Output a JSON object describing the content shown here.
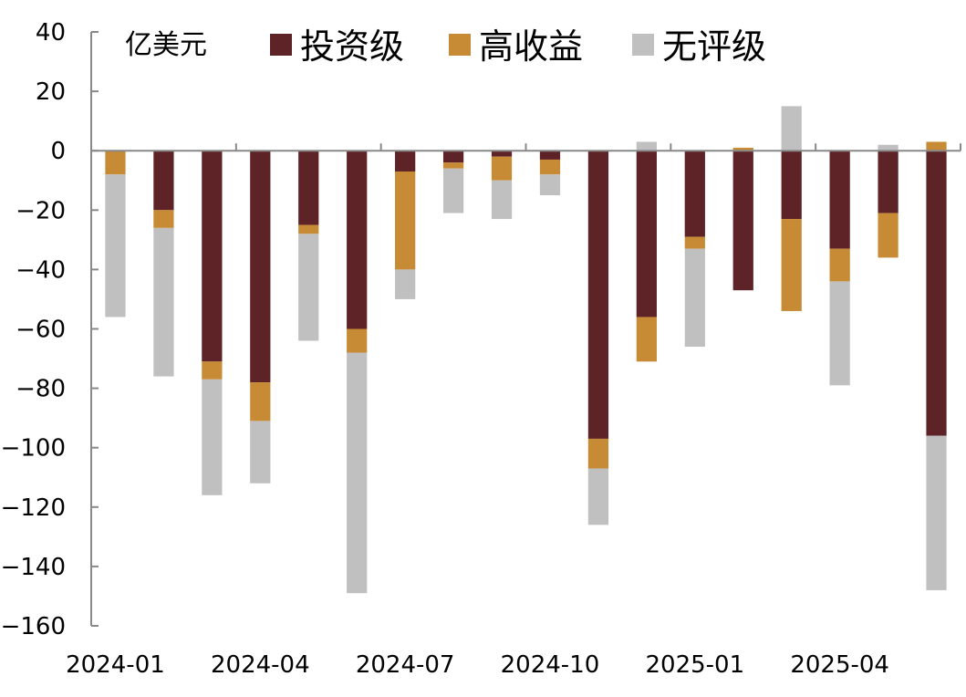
{
  "chart_data": {
    "type": "bar",
    "stacked": true,
    "unit_label": "亿美元",
    "categories": [
      "2024-01",
      "2024-02",
      "2024-03",
      "2024-04",
      "2024-05",
      "2024-06",
      "2024-07",
      "2024-08",
      "2024-09",
      "2024-10",
      "2024-11",
      "2024-12",
      "2025-01",
      "2025-02",
      "2025-03",
      "2025-04",
      "2025-05",
      "2025-06"
    ],
    "x_tick_labels": [
      "2024-01",
      "2024-04",
      "2024-07",
      "2024-10",
      "2025-01",
      "2025-04"
    ],
    "x_tick_indices": [
      0,
      3,
      6,
      9,
      12,
      15
    ],
    "series": [
      {
        "name": "投资级",
        "color": "#5e2326",
        "values": [
          0,
          -20,
          -71,
          -78,
          -25,
          -60,
          -7,
          -4,
          -2,
          -3,
          -97,
          -56,
          -29,
          -47,
          -23,
          -33,
          -21,
          -96
        ]
      },
      {
        "name": "高收益",
        "color": "#c78a35",
        "values": [
          -8,
          -6,
          -6,
          -13,
          -3,
          -8,
          -33,
          -2,
          -8,
          -5,
          -10,
          -15,
          -4,
          1,
          -31,
          -11,
          -15,
          3
        ]
      },
      {
        "name": "无评级",
        "color": "#c0c0c0",
        "values": [
          -48,
          -50,
          -39,
          -21,
          -36,
          -81,
          -10,
          -15,
          -13,
          -7,
          -19,
          3,
          -33,
          0,
          15,
          -35,
          2,
          -52
        ]
      }
    ],
    "ylim": [
      -160,
      40
    ],
    "yticks": [
      40,
      20,
      0,
      -20,
      -40,
      -60,
      -80,
      -100,
      -120,
      -140,
      -160
    ],
    "legend_position": "top"
  }
}
